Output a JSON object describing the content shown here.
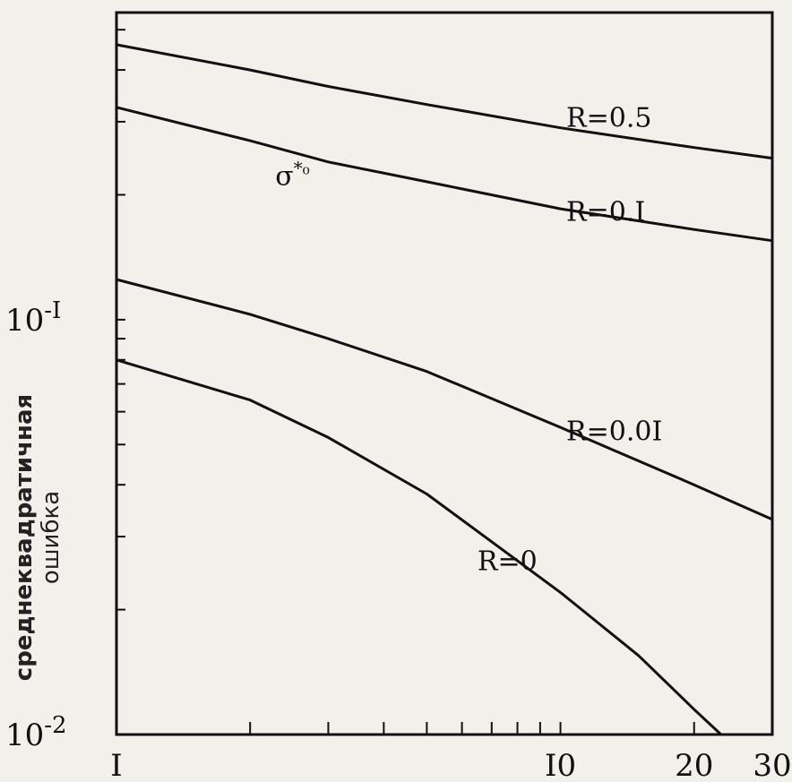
{
  "chart_data": {
    "type": "line",
    "xlabel": "",
    "ylabel": [
      "среднеквадратичная",
      "ошибка"
    ],
    "xscale": "log",
    "yscale": "log",
    "xlim": [
      1,
      30
    ],
    "ylim": [
      0.01,
      0.55
    ],
    "xticks": [
      {
        "value": 1,
        "label": "I"
      },
      {
        "value": 10,
        "label": "I0"
      },
      {
        "value": 20,
        "label": "20"
      },
      {
        "value": 30,
        "label": "30"
      }
    ],
    "yticks": [
      {
        "value": 0.1,
        "label": "10",
        "exp": "-I"
      },
      {
        "value": 0.01,
        "label": "10",
        "exp": "-2"
      }
    ],
    "grid": false,
    "legend": "none",
    "series": [
      {
        "name": "R=0.5",
        "x": [
          1,
          2,
          3,
          5,
          10,
          20,
          30
        ],
        "y": [
          0.46,
          0.4,
          0.365,
          0.33,
          0.29,
          0.26,
          0.245
        ]
      },
      {
        "name": "R=0.I",
        "x": [
          1,
          2,
          3,
          5,
          10,
          20,
          30
        ],
        "y": [
          0.325,
          0.27,
          0.24,
          0.215,
          0.185,
          0.165,
          0.155
        ]
      },
      {
        "name": "R=0.0I",
        "x": [
          1,
          2,
          3,
          5,
          10,
          20,
          30
        ],
        "y": [
          0.125,
          0.103,
          0.09,
          0.075,
          0.055,
          0.04,
          0.033
        ]
      },
      {
        "name": "R=0",
        "x": [
          1,
          2,
          3,
          5,
          10,
          15,
          20,
          23
        ],
        "y": [
          0.08,
          0.064,
          0.052,
          0.038,
          0.022,
          0.0155,
          0.0115,
          0.01
        ]
      }
    ],
    "annotations": [
      {
        "text": "σ",
        "superscript": "*₀",
        "x": 2.5,
        "y": 0.22
      }
    ]
  }
}
